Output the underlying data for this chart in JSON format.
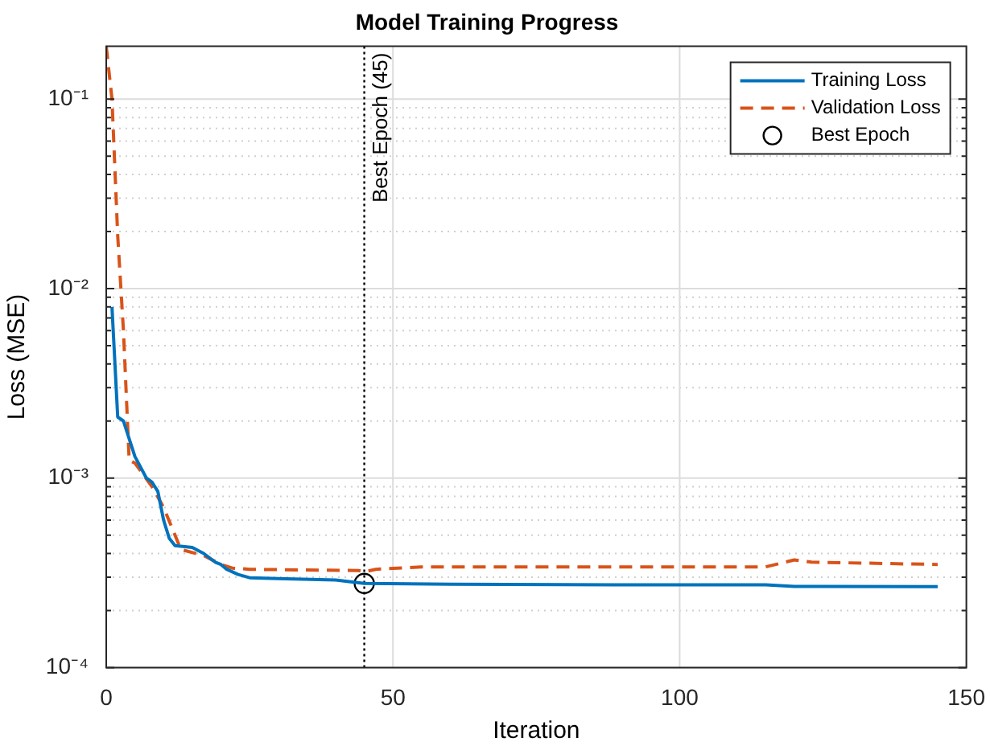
{
  "chart_data": {
    "type": "line",
    "title": "Model Training Progress",
    "xlabel": "Iteration",
    "ylabel": "Loss (MSE)",
    "xlim": [
      0,
      150
    ],
    "xticks": [
      0,
      50,
      100,
      150
    ],
    "ylim": [
      0.0001,
      0.19
    ],
    "log": "y",
    "yticks": [
      {
        "value": 0.0001,
        "label": "10⁻⁴"
      },
      {
        "value": 0.0002,
        "label": null
      },
      {
        "value": 0.0003,
        "label": null
      },
      {
        "value": 0.0004,
        "label": null
      },
      {
        "value": 0.0005,
        "label": null
      },
      {
        "value": 0.0006,
        "label": null
      },
      {
        "value": 0.0007,
        "label": null
      },
      {
        "value": 0.0008,
        "label": null
      },
      {
        "value": 0.0009,
        "label": null
      },
      {
        "value": 0.001,
        "label": "10⁻³"
      },
      {
        "value": 0.002,
        "label": null
      },
      {
        "value": 0.003,
        "label": null
      },
      {
        "value": 0.004,
        "label": null
      },
      {
        "value": 0.005,
        "label": null
      },
      {
        "value": 0.006,
        "label": null
      },
      {
        "value": 0.007,
        "label": null
      },
      {
        "value": 0.008,
        "label": null
      },
      {
        "value": 0.009,
        "label": null
      },
      {
        "value": 0.01,
        "label": "10⁻²"
      },
      {
        "value": 0.02,
        "label": null
      },
      {
        "value": 0.03,
        "label": null
      },
      {
        "value": 0.04,
        "label": null
      },
      {
        "value": 0.05,
        "label": null
      },
      {
        "value": 0.06,
        "label": null
      },
      {
        "value": 0.07,
        "label": null
      },
      {
        "value": 0.08,
        "label": null
      },
      {
        "value": 0.09,
        "label": null
      },
      {
        "value": 0.1,
        "label": "10⁻¹"
      }
    ],
    "grid": true,
    "legend": "top right",
    "series": [
      {
        "name": "Training Loss",
        "color": "#0072bd",
        "line_style": "solid",
        "marker": "none",
        "x": [
          1,
          2,
          3,
          5,
          7,
          8,
          9,
          10,
          11,
          12,
          15,
          17,
          19,
          20,
          21,
          23,
          25,
          30,
          40,
          45,
          60,
          100,
          115,
          120,
          145
        ],
        "values": [
          0.008,
          0.0021,
          0.002,
          0.0013,
          0.001,
          0.00095,
          0.00085,
          0.0006,
          0.00048,
          0.00044,
          0.00043,
          0.0004,
          0.00036,
          0.00035,
          0.00033,
          0.00031,
          0.000298,
          0.000295,
          0.00029,
          0.000278,
          0.000275,
          0.000273,
          0.000273,
          0.000268,
          0.000267
        ]
      },
      {
        "name": "Validation Loss",
        "color": "#d95319",
        "line_style": "dashed",
        "marker": "none",
        "x": [
          0,
          1,
          2,
          3,
          4,
          5,
          8,
          10,
          12,
          13,
          17,
          20,
          22,
          25,
          44,
          45,
          47,
          55,
          115,
          120,
          123,
          145
        ],
        "values": [
          0.19,
          0.1,
          0.019,
          0.006,
          0.00124,
          0.0012,
          0.0009,
          0.0007,
          0.0005,
          0.00042,
          0.00039,
          0.00035,
          0.000335,
          0.00033,
          0.000325,
          0.00032,
          0.00033,
          0.00034,
          0.00034,
          0.00037,
          0.00036,
          0.00035
        ]
      },
      {
        "name": "Best Epoch",
        "type": "scatter",
        "color": "#000000",
        "marker": "circle",
        "x": [
          45
        ],
        "values": [
          0.000278
        ]
      }
    ],
    "ref_lines": [
      {
        "axis": "x",
        "value": 45,
        "label": "Best Epoch (45)",
        "color": "#000000",
        "line_style": "dotted"
      }
    ]
  }
}
